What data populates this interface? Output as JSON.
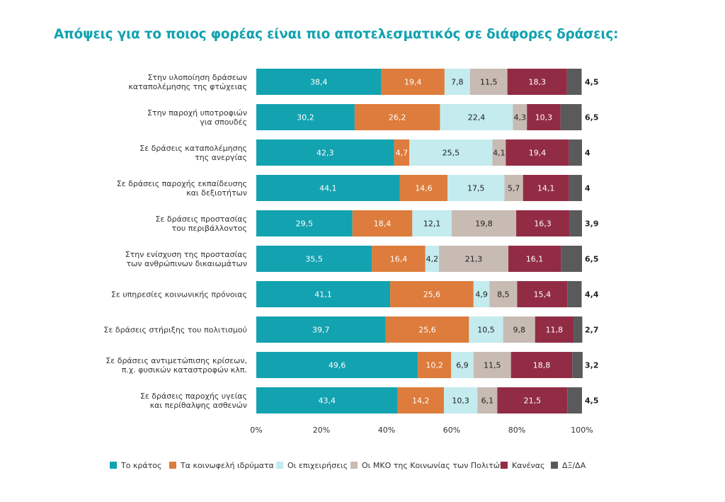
{
  "chart_data": {
    "type": "bar",
    "orientation": "horizontal",
    "stacked": true,
    "title": "Απόψεις για το ποιος φορέας είναι πιο αποτελεσματικός σε διάφορες δράσεις:",
    "categories": [
      [
        "Στην υλοποίηση δράσεων",
        "καταπολέμησης της φτώχειας"
      ],
      [
        "Στην παροχή υποτροφιών",
        "για σπουδές"
      ],
      [
        "Σε δράσεις καταπολέμησης",
        "της ανεργίας"
      ],
      [
        "Σε δράσεις παροχής εκπαίδευσης",
        "και δεξιοτήτων"
      ],
      [
        "Σε δράσεις προστασίας",
        "του περιβάλλοντος"
      ],
      [
        "Στην ενίσχυση της προστασίας",
        "των ανθρώπινων δικαιωμάτων"
      ],
      [
        "Σε υπηρεσίες κοινωνικής πρόνοιας"
      ],
      [
        "Σε δράσεις στήριξης του πολιτισμού"
      ],
      [
        "Σε δράσεις αντιμετώπισης κρίσεων,",
        "π.χ. φυσικών καταστροφών κλπ."
      ],
      [
        "Σε δράσεις παροχής υγείας",
        "και περίθαλψης ασθενών"
      ]
    ],
    "series": [
      {
        "name": "Το κράτος",
        "color": "#12a2b0",
        "label_color": "#ffffff",
        "values": [
          38.4,
          30.2,
          42.3,
          44.1,
          29.5,
          35.5,
          41.1,
          39.7,
          49.6,
          43.4
        ],
        "labels": [
          "38,4",
          "30,2",
          "42,3",
          "44,1",
          "29,5",
          "35,5",
          "41,1",
          "39,7",
          "49,6",
          "43,4"
        ]
      },
      {
        "name": "Τα κοινωφελή ιδρύματα",
        "color": "#dd7c3c",
        "label_color": "#ffffff",
        "values": [
          19.4,
          26.2,
          4.7,
          14.6,
          18.4,
          16.4,
          25.6,
          25.6,
          10.2,
          14.2
        ],
        "labels": [
          "19,4",
          "26,2",
          "4,7",
          "14,6",
          "18,4",
          "16,4",
          "25,6",
          "25,6",
          "10,2",
          "14,2"
        ]
      },
      {
        "name": "Οι επιχειρήσεις",
        "color": "#c4ebee",
        "label_color": "#222222",
        "values": [
          7.8,
          22.4,
          25.5,
          17.5,
          12.1,
          4.2,
          4.9,
          10.5,
          6.9,
          10.3
        ],
        "labels": [
          "7,8",
          "22,4",
          "25,5",
          "17,5",
          "12,1",
          "4,2",
          "4,9",
          "10,5",
          "6,9",
          "10,3"
        ]
      },
      {
        "name": "Οι ΜΚΟ της Κοινωνίας των Πολιτών",
        "color": "#c8bbb3",
        "label_color": "#222222",
        "values": [
          11.5,
          4.3,
          4.1,
          5.7,
          19.8,
          21.3,
          8.5,
          9.8,
          11.5,
          6.1
        ],
        "labels": [
          "11,5",
          "4,3",
          "4,1",
          "5,7",
          "19,8",
          "21,3",
          "8,5",
          "9,8",
          "11,5",
          "6,1"
        ]
      },
      {
        "name": "Κανένας",
        "color": "#922c45",
        "label_color": "#ffffff",
        "values": [
          18.3,
          10.3,
          19.4,
          14.1,
          16.3,
          16.1,
          15.4,
          11.8,
          18.8,
          21.5
        ],
        "labels": [
          "18,3",
          "10,3",
          "19,4",
          "14,1",
          "16,3",
          "16,1",
          "15,4",
          "11,8",
          "18,8",
          "21,5"
        ]
      },
      {
        "name": "ΔΞ/ΔΑ",
        "color": "#5a5a5c",
        "label_color": "#222222",
        "values": [
          4.5,
          6.5,
          4,
          4,
          3.9,
          6.5,
          4.4,
          2.7,
          3.2,
          4.5
        ],
        "labels": [
          "4,5",
          "6,5",
          "4",
          "4",
          "3,9",
          "6,5",
          "4,4",
          "2,7",
          "3,2",
          "4,5"
        ]
      }
    ],
    "xaxis": {
      "ticks": [
        0,
        20,
        40,
        60,
        80,
        100
      ],
      "tick_labels": [
        "0%",
        "20%",
        "40%",
        "60%",
        "80%",
        "100%"
      ]
    },
    "xlim": [
      0,
      100
    ],
    "grid": false,
    "legend_position": "bottom"
  }
}
